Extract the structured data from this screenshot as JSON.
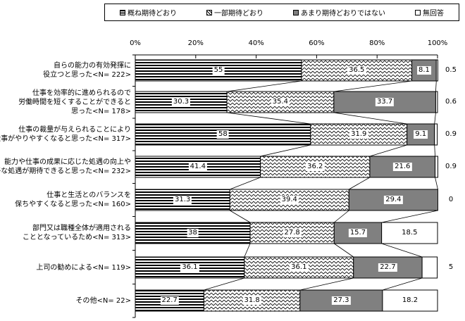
{
  "chart_data": {
    "type": "bar",
    "orientation": "horizontal",
    "stacked": true,
    "xlim": [
      0,
      100
    ],
    "x_ticks": [
      "0%",
      "20%",
      "40%",
      "60%",
      "80%",
      "100%"
    ],
    "legend_position": "top",
    "categories": [
      [
        "自らの能力の有効発揮に",
        "役立つと思った<N= 222>"
      ],
      [
        "仕事を効率的に進められるので",
        "労働時間を短くすることができると",
        "思った<N= 178>"
      ],
      [
        "仕事の裁量が与えられることにより",
        "仕事がやりやすくなると思った<N= 317>"
      ],
      [
        "能力や仕事の成果に応じた処遇の向上や",
        "公平な処遇が期待できると思った<N= 232>"
      ],
      [
        "仕事と生活とのバランスを",
        "保ちやすくなると思った<N= 160>"
      ],
      [
        "部門又は職種全体が適用される",
        "こととなっているため<N= 313>"
      ],
      [
        "上司の勧めによる<N= 119>"
      ],
      [
        "その他<N= 22>"
      ]
    ],
    "series": [
      {
        "name": "概ね期待どおり",
        "pattern": "horizontal-stripes",
        "values": [
          55,
          30.3,
          58,
          41.4,
          31.3,
          38,
          36.1,
          22.7
        ]
      },
      {
        "name": "一部期待どおり",
        "pattern": "zigzag",
        "values": [
          36.5,
          35.4,
          31.9,
          36.2,
          39.4,
          27.8,
          36.1,
          31.8
        ]
      },
      {
        "name": "あまり期待どおりではない",
        "color": "#808080",
        "values": [
          8.1,
          33.7,
          9.1,
          21.6,
          29.4,
          15.7,
          22.7,
          27.3
        ]
      },
      {
        "name": "無回答",
        "color": "#ffffff",
        "values": [
          0.5,
          0.6,
          0.9,
          0.9,
          0,
          18.5,
          5,
          18.2
        ]
      }
    ],
    "value_labels": [
      [
        "55",
        "36.5",
        "8.1",
        "0.5"
      ],
      [
        "30.3",
        "35.4",
        "33.7",
        "0.6"
      ],
      [
        "58",
        "31.9",
        "9.1",
        "0.9"
      ],
      [
        "41.4",
        "36.2",
        "21.6",
        "0.9"
      ],
      [
        "31.3",
        "39.4",
        "29.4",
        "0"
      ],
      [
        "38",
        "27.8",
        "15.7",
        "18.5"
      ],
      [
        "36.1",
        "36.1",
        "22.7",
        "5"
      ],
      [
        "22.7",
        "31.8",
        "27.3",
        "18.2"
      ]
    ],
    "series_lines": true
  }
}
